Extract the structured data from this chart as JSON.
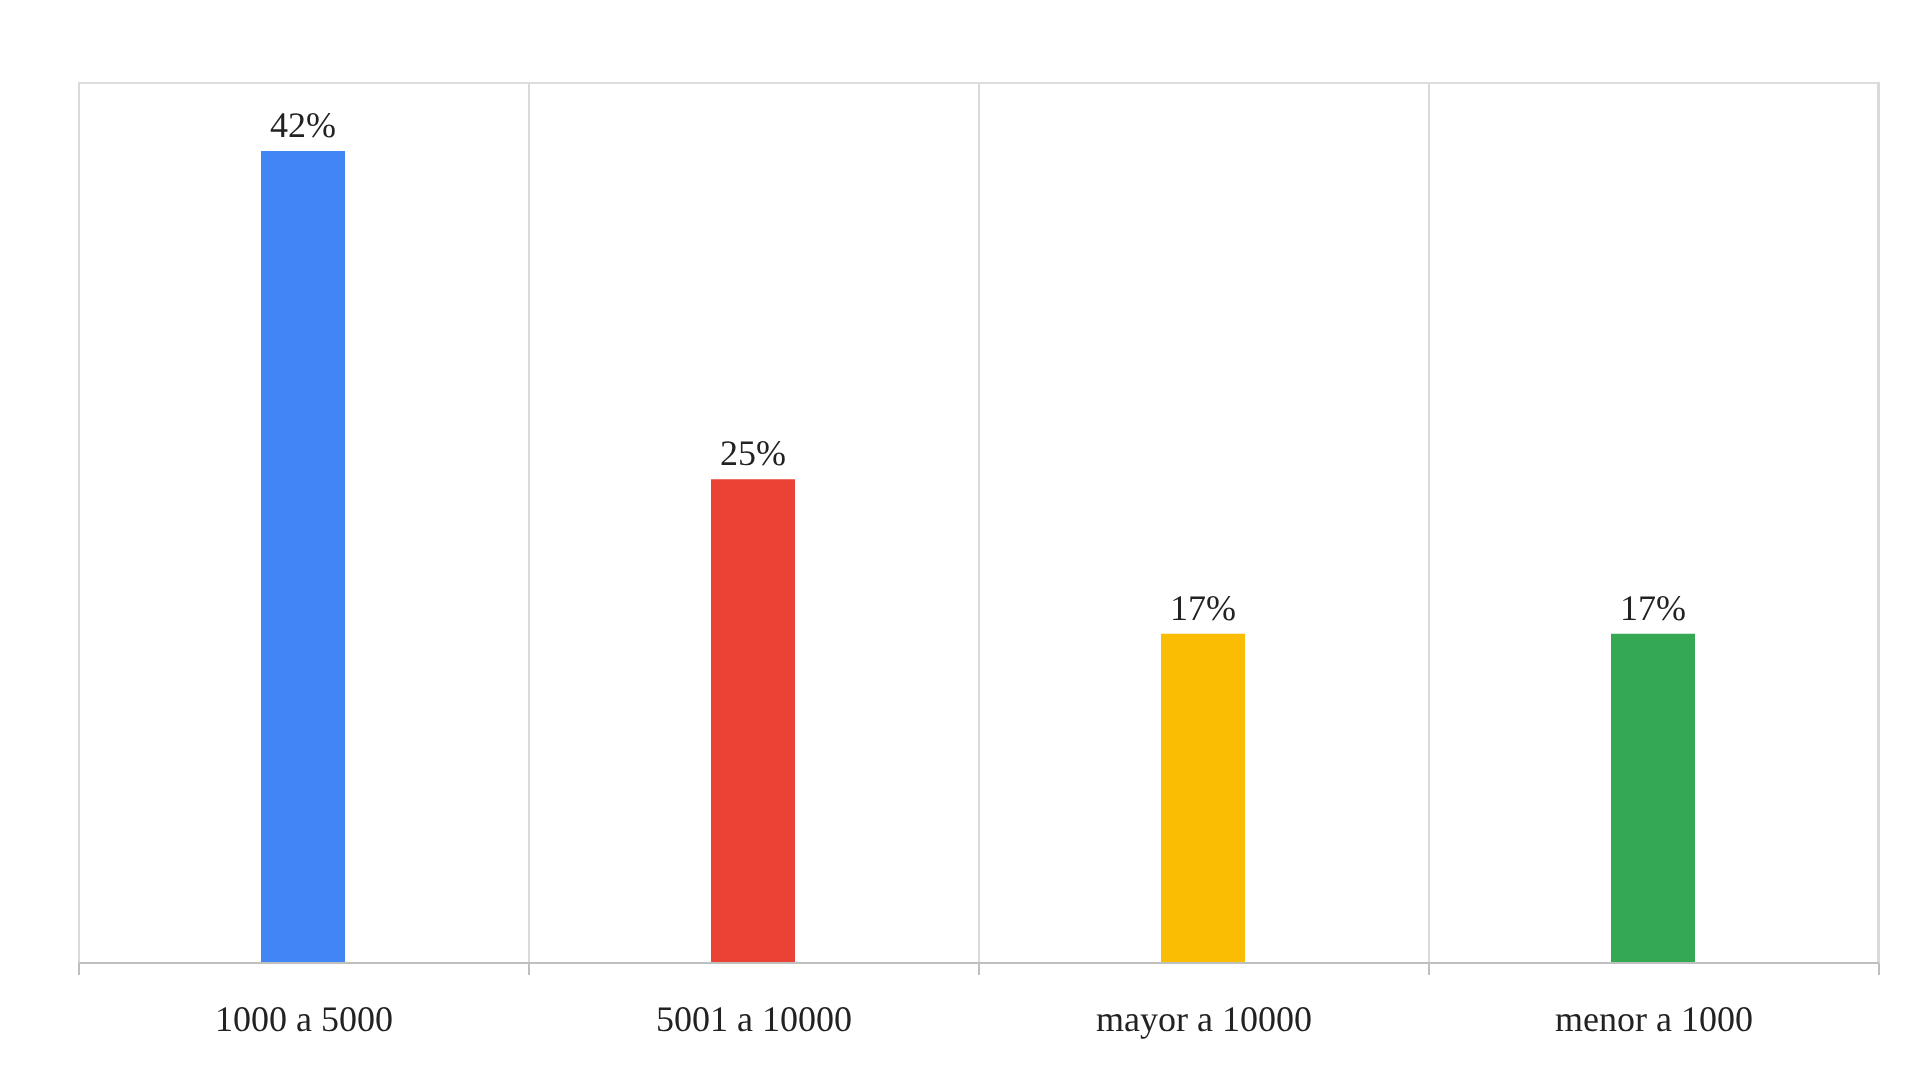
{
  "chart_data": {
    "type": "bar",
    "categories": [
      "1000 a 5000",
      "5001 a 10000",
      "mayor a 10000",
      "menor a 1000"
    ],
    "values": [
      42,
      25,
      17,
      17
    ],
    "colors": [
      "#4285f4",
      "#ea4335",
      "#fbbc04",
      "#34a853"
    ],
    "value_labels": [
      "42%",
      "25%",
      "17%",
      "17%"
    ],
    "grid": "x"
  }
}
